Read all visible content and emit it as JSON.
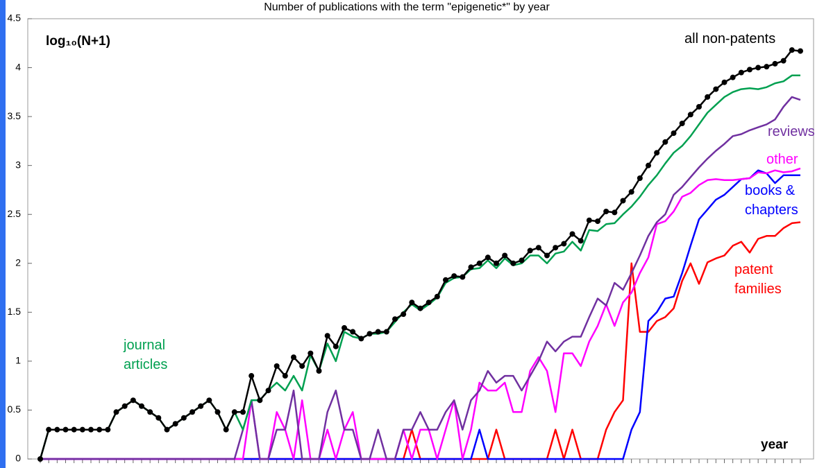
{
  "chart_data": {
    "type": "line",
    "title": "Number of publications with the term \"epigenetic*\" by year",
    "y_label": "log₁₀(N+1)",
    "x_label": "year",
    "categories": [
      null,
      null,
      null,
      null,
      null,
      null,
      null,
      null,
      null,
      null,
      null,
      null,
      null,
      null,
      null,
      null,
      null,
      null,
      null,
      null,
      null,
      null,
      null,
      null,
      null,
      null,
      null,
      null,
      null,
      null,
      null,
      null,
      null,
      null,
      null,
      null,
      null,
      null,
      null,
      null,
      null,
      null,
      null,
      null,
      null,
      null,
      null,
      null,
      null,
      null,
      null,
      null,
      null,
      null,
      null,
      null,
      null,
      null,
      null,
      null,
      null,
      null,
      null,
      null,
      null,
      null,
      null,
      null,
      null,
      null,
      null,
      null,
      null,
      null,
      null,
      null,
      null,
      null,
      null,
      null,
      null,
      null,
      null,
      null,
      null,
      null,
      null,
      null,
      null,
      null,
      null
    ],
    "ylim": [
      0,
      4.5
    ],
    "yticks": [
      0,
      0.5,
      1,
      1.5,
      2,
      2.5,
      3,
      3.5,
      4,
      4.5
    ],
    "series": [
      {
        "name": "all non-patents",
        "color": "#000000",
        "markers": true,
        "values": [
          0,
          0.3,
          0.3,
          0.3,
          0.3,
          0.3,
          0.3,
          0.3,
          0.3,
          0.48,
          0.54,
          0.6,
          0.54,
          0.48,
          0.42,
          0.3,
          0.36,
          0.42,
          0.48,
          0.54,
          0.6,
          0.48,
          0.3,
          0.48,
          0.48,
          0.85,
          0.6,
          0.7,
          0.95,
          0.85,
          1.04,
          0.95,
          1.08,
          0.9,
          1.26,
          1.15,
          1.34,
          1.3,
          1.23,
          1.28,
          1.3,
          1.3,
          1.43,
          1.48,
          1.6,
          1.54,
          1.6,
          1.66,
          1.83,
          1.87,
          1.86,
          1.96,
          2.0,
          2.06,
          2.0,
          2.08,
          2.0,
          2.03,
          2.13,
          2.16,
          2.08,
          2.16,
          2.2,
          2.3,
          2.23,
          2.44,
          2.43,
          2.53,
          2.52,
          2.64,
          2.73,
          2.87,
          3.0,
          3.13,
          3.24,
          3.33,
          3.43,
          3.52,
          3.6,
          3.7,
          3.78,
          3.85,
          3.9,
          3.95,
          3.98,
          4.0,
          4.01,
          4.04,
          4.07,
          4.18,
          4.17
        ]
      },
      {
        "name": "journal articles",
        "color": "#00a050",
        "markers": false,
        "values": [
          0,
          0.3,
          0.3,
          0.3,
          0.3,
          0.3,
          0.3,
          0.3,
          0.3,
          0.48,
          0.54,
          0.6,
          0.54,
          0.48,
          0.42,
          0.3,
          0.36,
          0.42,
          0.48,
          0.54,
          0.6,
          0.48,
          0.3,
          0.48,
          0.3,
          0.6,
          0.6,
          0.7,
          0.78,
          0.7,
          0.85,
          0.7,
          1.06,
          0.9,
          1.18,
          1.0,
          1.3,
          1.25,
          1.23,
          1.28,
          1.28,
          1.3,
          1.4,
          1.5,
          1.58,
          1.52,
          1.58,
          1.65,
          1.8,
          1.85,
          1.86,
          1.94,
          1.95,
          2.03,
          1.95,
          2.05,
          1.98,
          2.0,
          2.08,
          2.08,
          2.0,
          2.1,
          2.12,
          2.22,
          2.13,
          2.34,
          2.33,
          2.4,
          2.41,
          2.5,
          2.58,
          2.68,
          2.8,
          2.9,
          3.02,
          3.13,
          3.2,
          3.3,
          3.42,
          3.54,
          3.62,
          3.7,
          3.75,
          3.78,
          3.79,
          3.78,
          3.8,
          3.84,
          3.86,
          3.92,
          3.92
        ]
      },
      {
        "name": "reviews",
        "color": "#7030a0",
        "markers": false,
        "values": [
          0,
          0,
          0,
          0,
          0,
          0,
          0,
          0,
          0,
          0,
          0,
          0,
          0,
          0,
          0,
          0,
          0,
          0,
          0,
          0,
          0,
          0,
          0,
          0,
          0.3,
          0.6,
          0,
          0,
          0.3,
          0.3,
          0.7,
          0,
          0,
          0,
          0.48,
          0.7,
          0.3,
          0.3,
          0,
          0,
          0.3,
          0,
          0,
          0.3,
          0.3,
          0.48,
          0.3,
          0.3,
          0.48,
          0.6,
          0.3,
          0.6,
          0.7,
          0.9,
          0.78,
          0.85,
          0.85,
          0.7,
          0.85,
          1.0,
          1.2,
          1.1,
          1.2,
          1.25,
          1.25,
          1.45,
          1.64,
          1.57,
          1.8,
          1.73,
          1.9,
          2.08,
          2.28,
          2.42,
          2.5,
          2.7,
          2.78,
          2.88,
          2.98,
          3.07,
          3.15,
          3.22,
          3.3,
          3.32,
          3.36,
          3.39,
          3.42,
          3.47,
          3.6,
          3.7,
          3.67
        ]
      },
      {
        "name": "other",
        "color": "#ff00ff",
        "markers": false,
        "values": [
          0,
          0,
          0,
          0,
          0,
          0,
          0,
          0,
          0,
          0,
          0,
          0,
          0,
          0,
          0,
          0,
          0,
          0,
          0,
          0,
          0,
          0,
          0,
          0,
          0,
          0.6,
          0,
          0,
          0.48,
          0.3,
          0,
          0.6,
          0,
          0,
          0.3,
          0,
          0.3,
          0.48,
          0,
          0,
          0,
          0,
          0,
          0.3,
          0,
          0.3,
          0.3,
          0,
          0.3,
          0.6,
          0,
          0.3,
          0.78,
          0.7,
          0.7,
          0.78,
          0.48,
          0.48,
          0.9,
          1.04,
          0.9,
          0.48,
          1.08,
          1.08,
          0.95,
          1.2,
          1.36,
          1.58,
          1.36,
          1.6,
          1.7,
          1.9,
          2.06,
          2.4,
          2.43,
          2.53,
          2.68,
          2.72,
          2.8,
          2.85,
          2.86,
          2.85,
          2.85,
          2.86,
          2.87,
          2.93,
          2.92,
          2.95,
          2.93,
          2.94,
          2.97
        ]
      },
      {
        "name": "books & chapters",
        "color": "#0000ff",
        "markers": false,
        "values": [
          0,
          0,
          0,
          0,
          0,
          0,
          0,
          0,
          0,
          0,
          0,
          0,
          0,
          0,
          0,
          0,
          0,
          0,
          0,
          0,
          0,
          0,
          0,
          0,
          0,
          0,
          0,
          0,
          0,
          0,
          0,
          0,
          0,
          0,
          0,
          0,
          0,
          0,
          0,
          0,
          0,
          0,
          0,
          0,
          0,
          0,
          0,
          0,
          0,
          0,
          0,
          0,
          0.3,
          0,
          0,
          0,
          0,
          0,
          0,
          0,
          0,
          0,
          0,
          0,
          0,
          0,
          0,
          0,
          0,
          0,
          0.3,
          0.48,
          1.41,
          1.5,
          1.64,
          1.66,
          1.9,
          2.18,
          2.45,
          2.55,
          2.65,
          2.7,
          2.78,
          2.86,
          2.87,
          2.95,
          2.92,
          2.82,
          2.9,
          2.9,
          2.9
        ]
      },
      {
        "name": "patent families",
        "color": "#ff0000",
        "markers": false,
        "values": [
          0,
          0,
          0,
          0,
          0,
          0,
          0,
          0,
          0,
          0,
          0,
          0,
          0,
          0,
          0,
          0,
          0,
          0,
          0,
          0,
          0,
          0,
          0,
          0,
          0,
          0,
          0,
          0,
          0,
          0,
          0,
          0,
          0,
          0,
          0,
          0,
          0,
          0,
          0,
          0,
          0,
          0,
          0,
          0,
          0.3,
          0,
          0,
          0,
          0,
          0,
          0,
          0,
          0,
          0,
          0.3,
          0,
          0,
          0,
          0,
          0,
          0,
          0.3,
          0,
          0.3,
          0,
          0,
          0,
          0.3,
          0.48,
          0.6,
          2.0,
          1.3,
          1.3,
          1.41,
          1.45,
          1.54,
          1.82,
          2.0,
          1.79,
          2.01,
          2.05,
          2.08,
          2.18,
          2.22,
          2.11,
          2.25,
          2.28,
          2.28,
          2.36,
          2.41,
          2.42
        ]
      }
    ]
  }
}
